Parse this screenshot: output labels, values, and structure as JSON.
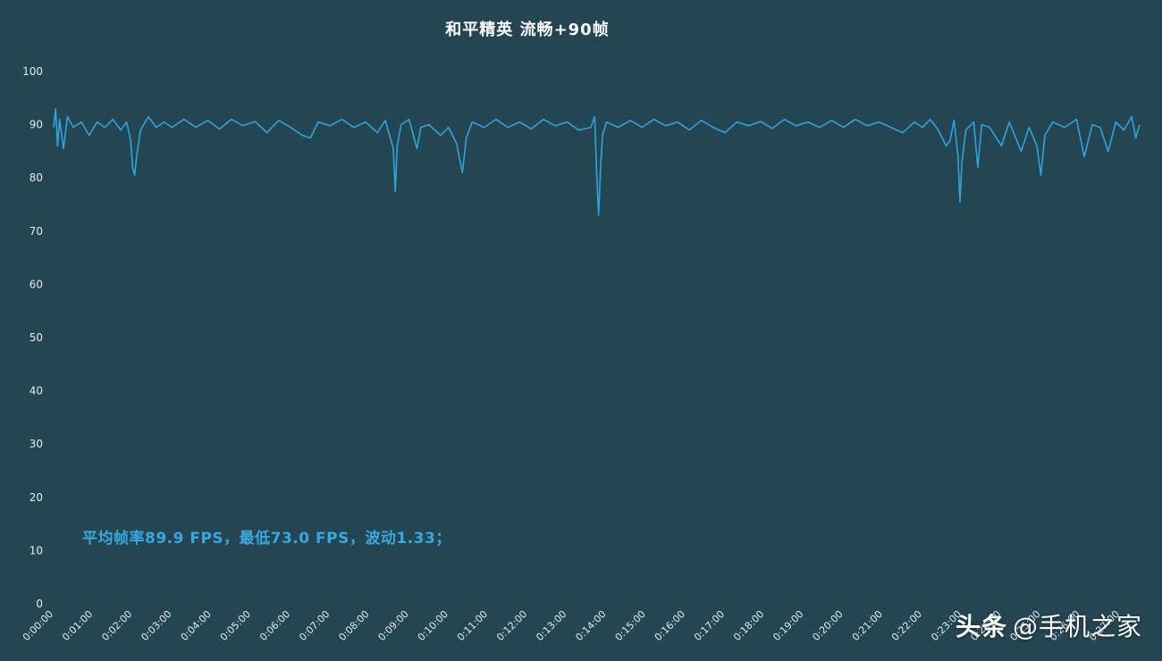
{
  "chart_data": {
    "type": "line",
    "title": "和平精英 流畅+90帧",
    "annotation": "平均帧率89.9 FPS，最低73.0 FPS，波动1.33；",
    "xlabel": "",
    "ylabel": "",
    "ylim": [
      0,
      100
    ],
    "yticks": [
      0,
      10,
      20,
      30,
      40,
      50,
      60,
      70,
      80,
      90,
      100
    ],
    "x_range_minutes": [
      0,
      27.5
    ],
    "xticks": [
      "0:00:00",
      "0:01:00",
      "0:02:00",
      "0:03:00",
      "0:04:00",
      "0:05:00",
      "0:06:00",
      "0:07:00",
      "0:08:00",
      "0:09:00",
      "0:10:00",
      "0:11:00",
      "0:12:00",
      "0:13:00",
      "0:14:00",
      "0:15:00",
      "0:16:00",
      "0:17:00",
      "0:18:00",
      "0:19:00",
      "0:20:00",
      "0:21:00",
      "0:22:00",
      "0:23:00",
      "0:24:00",
      "0:25:00",
      "0:26:00",
      "0:27:00"
    ],
    "grid": false,
    "line_color": "#2fa3dc",
    "series": [
      {
        "points": [
          [
            0.0,
            89.5
          ],
          [
            0.05,
            93.0
          ],
          [
            0.1,
            86.0
          ],
          [
            0.15,
            91.0
          ],
          [
            0.25,
            85.5
          ],
          [
            0.35,
            91.5
          ],
          [
            0.5,
            89.5
          ],
          [
            0.7,
            90.5
          ],
          [
            0.9,
            88.0
          ],
          [
            1.1,
            90.5
          ],
          [
            1.3,
            89.5
          ],
          [
            1.5,
            91.0
          ],
          [
            1.7,
            89.0
          ],
          [
            1.85,
            90.5
          ],
          [
            1.95,
            87.0
          ],
          [
            2.0,
            82.0
          ],
          [
            2.05,
            80.5
          ],
          [
            2.1,
            84.0
          ],
          [
            2.2,
            89.0
          ],
          [
            2.4,
            91.5
          ],
          [
            2.6,
            89.5
          ],
          [
            2.8,
            90.5
          ],
          [
            3.0,
            89.5
          ],
          [
            3.3,
            91.0
          ],
          [
            3.6,
            89.5
          ],
          [
            3.9,
            90.8
          ],
          [
            4.2,
            89.2
          ],
          [
            4.5,
            91.0
          ],
          [
            4.8,
            89.8
          ],
          [
            5.1,
            90.6
          ],
          [
            5.4,
            88.5
          ],
          [
            5.7,
            90.8
          ],
          [
            6.0,
            89.5
          ],
          [
            6.3,
            88.0
          ],
          [
            6.5,
            87.5
          ],
          [
            6.7,
            90.5
          ],
          [
            7.0,
            89.8
          ],
          [
            7.3,
            91.0
          ],
          [
            7.6,
            89.5
          ],
          [
            7.9,
            90.5
          ],
          [
            8.2,
            88.5
          ],
          [
            8.4,
            90.8
          ],
          [
            8.6,
            85.5
          ],
          [
            8.65,
            77.5
          ],
          [
            8.7,
            86.0
          ],
          [
            8.8,
            90.0
          ],
          [
            9.0,
            91.0
          ],
          [
            9.2,
            85.5
          ],
          [
            9.3,
            89.5
          ],
          [
            9.5,
            90.0
          ],
          [
            9.8,
            88.0
          ],
          [
            10.0,
            89.5
          ],
          [
            10.2,
            86.5
          ],
          [
            10.35,
            81.0
          ],
          [
            10.45,
            87.5
          ],
          [
            10.6,
            90.5
          ],
          [
            10.9,
            89.5
          ],
          [
            11.2,
            91.0
          ],
          [
            11.5,
            89.5
          ],
          [
            11.8,
            90.5
          ],
          [
            12.1,
            89.2
          ],
          [
            12.4,
            91.0
          ],
          [
            12.7,
            89.8
          ],
          [
            13.0,
            90.5
          ],
          [
            13.3,
            89.0
          ],
          [
            13.6,
            89.5
          ],
          [
            13.7,
            91.5
          ],
          [
            13.75,
            81.0
          ],
          [
            13.8,
            73.0
          ],
          [
            13.85,
            82.0
          ],
          [
            13.9,
            88.0
          ],
          [
            14.0,
            90.5
          ],
          [
            14.3,
            89.5
          ],
          [
            14.6,
            90.8
          ],
          [
            14.9,
            89.5
          ],
          [
            15.2,
            91.0
          ],
          [
            15.5,
            89.8
          ],
          [
            15.8,
            90.5
          ],
          [
            16.1,
            89.0
          ],
          [
            16.4,
            90.8
          ],
          [
            16.7,
            89.5
          ],
          [
            17.0,
            88.5
          ],
          [
            17.3,
            90.5
          ],
          [
            17.6,
            89.8
          ],
          [
            17.9,
            90.6
          ],
          [
            18.2,
            89.3
          ],
          [
            18.5,
            91.0
          ],
          [
            18.8,
            89.8
          ],
          [
            19.1,
            90.5
          ],
          [
            19.4,
            89.5
          ],
          [
            19.7,
            90.8
          ],
          [
            20.0,
            89.5
          ],
          [
            20.3,
            91.0
          ],
          [
            20.6,
            89.8
          ],
          [
            20.9,
            90.5
          ],
          [
            21.2,
            89.5
          ],
          [
            21.5,
            88.5
          ],
          [
            21.8,
            90.5
          ],
          [
            22.0,
            89.5
          ],
          [
            22.2,
            91.0
          ],
          [
            22.4,
            89.0
          ],
          [
            22.6,
            86.0
          ],
          [
            22.7,
            87.0
          ],
          [
            22.8,
            90.8
          ],
          [
            22.9,
            84.0
          ],
          [
            22.95,
            75.5
          ],
          [
            23.0,
            83.0
          ],
          [
            23.1,
            89.0
          ],
          [
            23.3,
            90.5
          ],
          [
            23.4,
            82.0
          ],
          [
            23.5,
            90.0
          ],
          [
            23.7,
            89.5
          ],
          [
            24.0,
            86.0
          ],
          [
            24.2,
            90.5
          ],
          [
            24.5,
            85.0
          ],
          [
            24.7,
            89.5
          ],
          [
            24.9,
            86.0
          ],
          [
            25.0,
            80.5
          ],
          [
            25.1,
            88.0
          ],
          [
            25.3,
            90.5
          ],
          [
            25.6,
            89.5
          ],
          [
            25.9,
            91.0
          ],
          [
            26.1,
            84.0
          ],
          [
            26.3,
            90.0
          ],
          [
            26.5,
            89.5
          ],
          [
            26.7,
            85.0
          ],
          [
            26.9,
            90.5
          ],
          [
            27.1,
            89.0
          ],
          [
            27.3,
            91.5
          ],
          [
            27.4,
            87.5
          ],
          [
            27.5,
            90.0
          ]
        ]
      }
    ]
  },
  "watermark": {
    "brand": "头条",
    "handle": "@手机之家"
  }
}
